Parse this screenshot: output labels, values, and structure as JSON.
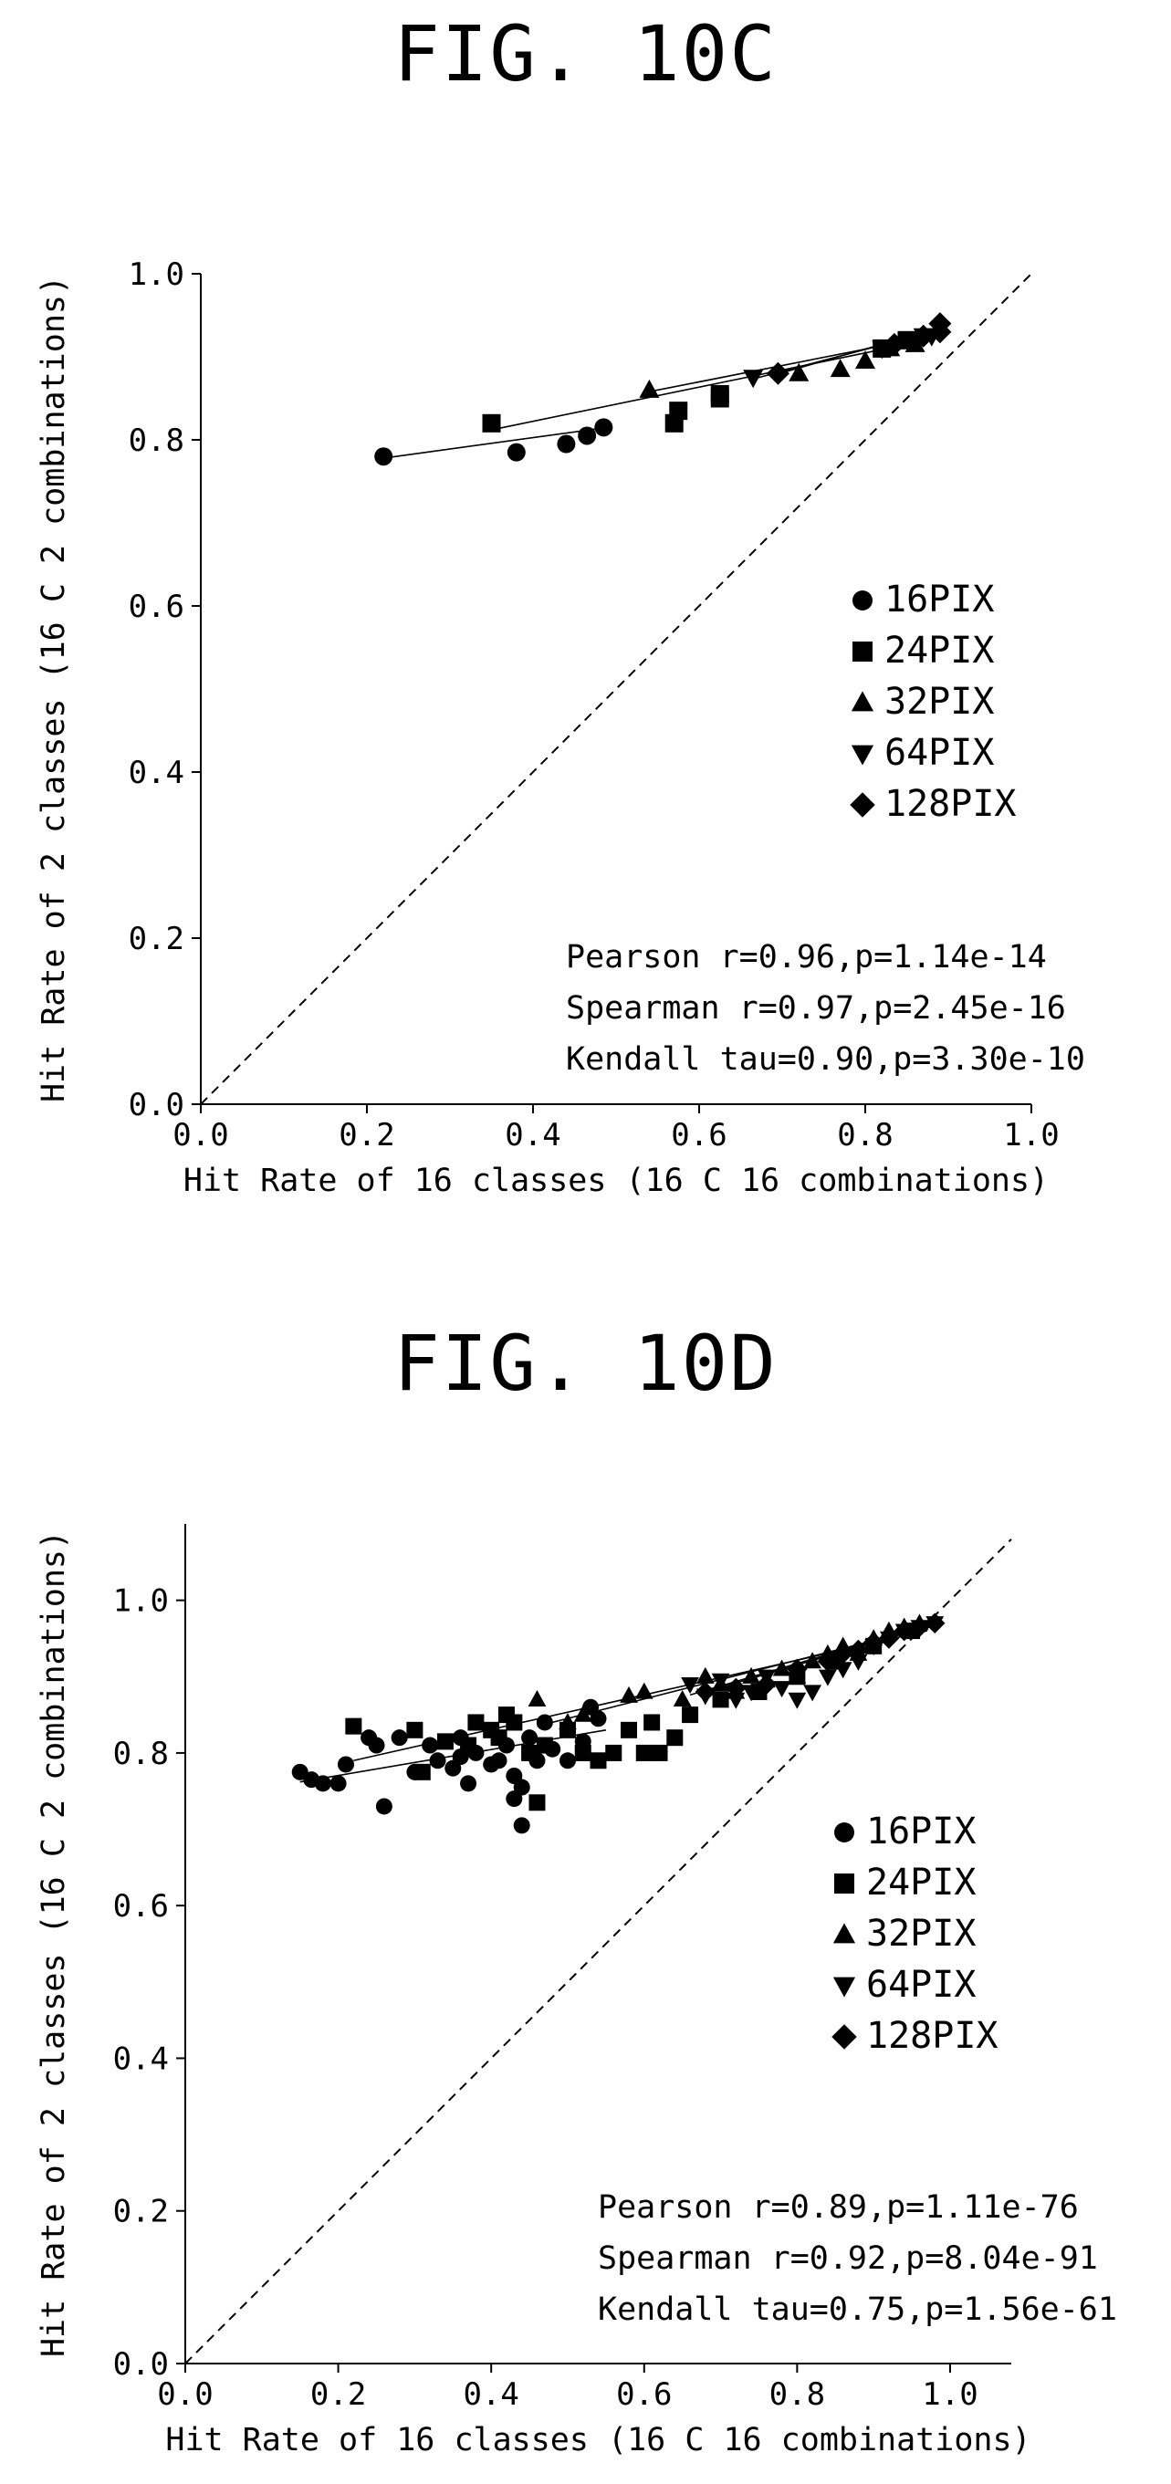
{
  "figures": [
    {
      "fig_title": "FIG. 10C",
      "chart_data": {
        "type": "scatter",
        "xlabel": "Hit Rate of 16 classes (16 C 16 combinations)",
        "ylabel": "Hit Rate of 2 classes (16 C 2 combinations)",
        "xlim": [
          0.0,
          1.0
        ],
        "ylim": [
          0.0,
          1.0
        ],
        "xticks": [
          "0.0",
          "0.2",
          "0.4",
          "0.6",
          "0.8",
          "1.0"
        ],
        "yticks": [
          "0.0",
          "0.2",
          "0.4",
          "0.6",
          "0.8",
          "1.0"
        ],
        "reference_line": "diagonal y = x (dashed)",
        "grid": false,
        "legend_position": "right",
        "series": [
          {
            "name": "16PIX",
            "marker": "circle",
            "points": [
              [
                0.22,
                0.78
              ],
              [
                0.38,
                0.785
              ],
              [
                0.44,
                0.795
              ],
              [
                0.465,
                0.805
              ],
              [
                0.485,
                0.815
              ]
            ],
            "fit": [
              [
                0.22,
                0.778
              ],
              [
                0.49,
                0.815
              ]
            ]
          },
          {
            "name": "24PIX",
            "marker": "square",
            "points": [
              [
                0.35,
                0.82
              ],
              [
                0.57,
                0.82
              ],
              [
                0.575,
                0.835
              ],
              [
                0.625,
                0.85
              ],
              [
                0.625,
                0.855
              ],
              [
                0.82,
                0.91
              ],
              [
                0.85,
                0.92
              ]
            ],
            "fit": [
              [
                0.35,
                0.812
              ],
              [
                0.85,
                0.915
              ]
            ]
          },
          {
            "name": "32PIX",
            "marker": "triangle-up",
            "points": [
              [
                0.54,
                0.86
              ],
              [
                0.72,
                0.88
              ],
              [
                0.77,
                0.885
              ],
              [
                0.8,
                0.895
              ],
              [
                0.83,
                0.91
              ],
              [
                0.86,
                0.915
              ]
            ],
            "fit": [
              [
                0.54,
                0.858
              ],
              [
                0.88,
                0.925
              ]
            ]
          },
          {
            "name": "64PIX",
            "marker": "triangle-down",
            "points": [
              [
                0.665,
                0.875
              ],
              [
                0.82,
                0.91
              ],
              [
                0.86,
                0.92
              ],
              [
                0.87,
                0.925
              ],
              [
                0.88,
                0.925
              ]
            ],
            "fit": [
              [
                0.66,
                0.872
              ],
              [
                0.88,
                0.93
              ]
            ]
          },
          {
            "name": "128PIX",
            "marker": "diamond",
            "points": [
              [
                0.695,
                0.88
              ],
              [
                0.835,
                0.915
              ],
              [
                0.87,
                0.925
              ],
              [
                0.89,
                0.93
              ],
              [
                0.89,
                0.94
              ]
            ],
            "fit": [
              [
                0.69,
                0.878
              ],
              [
                0.89,
                0.935
              ]
            ]
          }
        ],
        "annotations": [
          "Pearson r=0.96,p=1.14e-14",
          "Spearman r=0.97,p=2.45e-16",
          "Kendall tau=0.90,p=3.30e-10"
        ]
      }
    },
    {
      "fig_title": "FIG. 10D",
      "chart_data": {
        "type": "scatter",
        "xlabel": "Hit Rate of 16 classes (16 C 16 combinations)",
        "ylabel": "Hit Rate of 2 classes (16 C 2 combinations)",
        "xlim": [
          0.0,
          1.08
        ],
        "ylim": [
          0.0,
          1.1
        ],
        "xticks": [
          "0.0",
          "0.2",
          "0.4",
          "0.6",
          "0.8",
          "1.0"
        ],
        "yticks": [
          "0.0",
          "0.2",
          "0.4",
          "0.6",
          "0.8",
          "1.0"
        ],
        "reference_line": "diagonal y = x (dashed)",
        "grid": false,
        "legend_position": "right",
        "series": [
          {
            "name": "16PIX",
            "marker": "circle",
            "points": [
              [
                0.15,
                0.775
              ],
              [
                0.165,
                0.765
              ],
              [
                0.18,
                0.76
              ],
              [
                0.2,
                0.76
              ],
              [
                0.21,
                0.785
              ],
              [
                0.24,
                0.82
              ],
              [
                0.25,
                0.81
              ],
              [
                0.26,
                0.73
              ],
              [
                0.28,
                0.82
              ],
              [
                0.3,
                0.775
              ],
              [
                0.32,
                0.81
              ],
              [
                0.33,
                0.79
              ],
              [
                0.35,
                0.78
              ],
              [
                0.36,
                0.795
              ],
              [
                0.37,
                0.76
              ],
              [
                0.38,
                0.8
              ],
              [
                0.4,
                0.785
              ],
              [
                0.41,
                0.79
              ],
              [
                0.42,
                0.81
              ],
              [
                0.43,
                0.77
              ],
              [
                0.44,
                0.755
              ],
              [
                0.45,
                0.82
              ],
              [
                0.46,
                0.79
              ],
              [
                0.48,
                0.805
              ],
              [
                0.5,
                0.79
              ],
              [
                0.52,
                0.815
              ],
              [
                0.53,
                0.86
              ],
              [
                0.54,
                0.845
              ],
              [
                0.44,
                0.705
              ],
              [
                0.43,
                0.74
              ],
              [
                0.36,
                0.82
              ],
              [
                0.47,
                0.84
              ]
            ],
            "fit": [
              [
                0.15,
                0.762
              ],
              [
                0.55,
                0.83
              ]
            ]
          },
          {
            "name": "24PIX",
            "marker": "square",
            "points": [
              [
                0.22,
                0.835
              ],
              [
                0.3,
                0.83
              ],
              [
                0.31,
                0.775
              ],
              [
                0.34,
                0.815
              ],
              [
                0.37,
                0.81
              ],
              [
                0.38,
                0.84
              ],
              [
                0.4,
                0.83
              ],
              [
                0.41,
                0.82
              ],
              [
                0.42,
                0.85
              ],
              [
                0.43,
                0.84
              ],
              [
                0.45,
                0.8
              ],
              [
                0.46,
                0.735
              ],
              [
                0.47,
                0.81
              ],
              [
                0.5,
                0.83
              ],
              [
                0.52,
                0.8
              ],
              [
                0.54,
                0.79
              ],
              [
                0.56,
                0.8
              ],
              [
                0.58,
                0.83
              ],
              [
                0.6,
                0.8
              ],
              [
                0.61,
                0.84
              ],
              [
                0.62,
                0.8
              ],
              [
                0.64,
                0.82
              ],
              [
                0.66,
                0.85
              ],
              [
                0.7,
                0.87
              ],
              [
                0.75,
                0.88
              ],
              [
                0.8,
                0.9
              ],
              [
                0.85,
                0.92
              ],
              [
                0.9,
                0.94
              ],
              [
                0.95,
                0.96
              ]
            ],
            "fit": [
              [
                0.22,
                0.79
              ],
              [
                0.97,
                0.96
              ]
            ]
          },
          {
            "name": "32PIX",
            "marker": "triangle-up",
            "points": [
              [
                0.46,
                0.87
              ],
              [
                0.5,
                0.84
              ],
              [
                0.52,
                0.85
              ],
              [
                0.58,
                0.875
              ],
              [
                0.6,
                0.88
              ],
              [
                0.65,
                0.87
              ],
              [
                0.68,
                0.9
              ],
              [
                0.7,
                0.89
              ],
              [
                0.72,
                0.88
              ],
              [
                0.74,
                0.9
              ],
              [
                0.76,
                0.895
              ],
              [
                0.78,
                0.91
              ],
              [
                0.8,
                0.9
              ],
              [
                0.82,
                0.92
              ],
              [
                0.84,
                0.93
              ],
              [
                0.86,
                0.94
              ],
              [
                0.88,
                0.93
              ],
              [
                0.9,
                0.95
              ],
              [
                0.92,
                0.96
              ],
              [
                0.94,
                0.965
              ],
              [
                0.96,
                0.97
              ]
            ],
            "fit": [
              [
                0.46,
                0.835
              ],
              [
                0.97,
                0.965
              ]
            ]
          },
          {
            "name": "64PIX",
            "marker": "triangle-down",
            "points": [
              [
                0.66,
                0.89
              ],
              [
                0.68,
                0.875
              ],
              [
                0.7,
                0.895
              ],
              [
                0.72,
                0.87
              ],
              [
                0.74,
                0.88
              ],
              [
                0.76,
                0.9
              ],
              [
                0.78,
                0.885
              ],
              [
                0.8,
                0.87
              ],
              [
                0.82,
                0.88
              ],
              [
                0.84,
                0.9
              ],
              [
                0.86,
                0.91
              ],
              [
                0.88,
                0.92
              ],
              [
                0.9,
                0.94
              ],
              [
                0.92,
                0.95
              ],
              [
                0.94,
                0.96
              ],
              [
                0.96,
                0.965
              ],
              [
                0.98,
                0.97
              ]
            ],
            "fit": [
              [
                0.66,
                0.876
              ],
              [
                0.98,
                0.97
              ]
            ]
          },
          {
            "name": "128PIX",
            "marker": "diamond",
            "points": [
              [
                0.68,
                0.88
              ],
              [
                0.72,
                0.885
              ],
              [
                0.76,
                0.89
              ],
              [
                0.8,
                0.91
              ],
              [
                0.84,
                0.92
              ],
              [
                0.86,
                0.93
              ],
              [
                0.88,
                0.935
              ],
              [
                0.9,
                0.945
              ],
              [
                0.92,
                0.95
              ],
              [
                0.94,
                0.96
              ],
              [
                0.96,
                0.965
              ],
              [
                0.98,
                0.97
              ]
            ],
            "fit": [
              [
                0.68,
                0.88
              ],
              [
                0.98,
                0.968
              ]
            ]
          }
        ],
        "annotations": [
          "Pearson r=0.89,p=1.11e-76",
          "Spearman r=0.92,p=8.04e-91",
          "Kendall tau=0.75,p=1.56e-61"
        ]
      }
    }
  ]
}
